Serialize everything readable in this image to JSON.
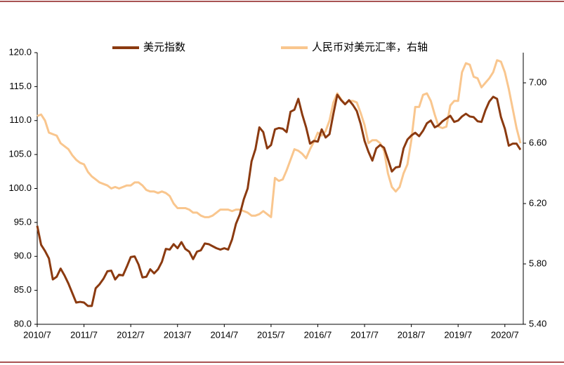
{
  "chart_data": {
    "type": "line",
    "categories": [
      "2010/7",
      null,
      null,
      null,
      null,
      null,
      null,
      null,
      null,
      null,
      null,
      null,
      "2011/7",
      null,
      null,
      null,
      null,
      null,
      null,
      null,
      null,
      null,
      null,
      null,
      "2012/7",
      null,
      null,
      null,
      null,
      null,
      null,
      null,
      null,
      null,
      null,
      null,
      "2013/7",
      null,
      null,
      null,
      null,
      null,
      null,
      null,
      null,
      null,
      null,
      null,
      "2014/7",
      null,
      null,
      null,
      null,
      null,
      null,
      null,
      null,
      null,
      null,
      null,
      "2015/7",
      null,
      null,
      null,
      null,
      null,
      null,
      null,
      null,
      null,
      null,
      null,
      "2016/7",
      null,
      null,
      null,
      null,
      null,
      null,
      null,
      null,
      null,
      null,
      null,
      "2017/7",
      null,
      null,
      null,
      null,
      null,
      null,
      null,
      null,
      null,
      null,
      null,
      "2018/7",
      null,
      null,
      null,
      null,
      null,
      null,
      null,
      null,
      null,
      null,
      null,
      "2019/7",
      null,
      null,
      null,
      null,
      null,
      null,
      null,
      null,
      null,
      null,
      null,
      "2020/7",
      null,
      null,
      null,
      null
    ],
    "series": [
      {
        "name": "美元指数",
        "color": "#8b3a10",
        "values": [
          94.5,
          91.7,
          90.8,
          89.7,
          86.6,
          87.0,
          88.2,
          87.2,
          86.0,
          84.6,
          83.2,
          83.3,
          83.2,
          82.7,
          82.7,
          85.3,
          85.9,
          86.7,
          87.8,
          87.9,
          86.6,
          87.3,
          87.2,
          88.5,
          89.9,
          90.0,
          88.8,
          86.9,
          87.0,
          88.1,
          87.5,
          88.1,
          89.2,
          91.1,
          91.0,
          91.8,
          91.2,
          92.1,
          91.1,
          90.7,
          89.6,
          90.7,
          90.9,
          91.9,
          91.8,
          91.5,
          91.2,
          91.0,
          91.2,
          91.0,
          92.5,
          94.8,
          96.2,
          98.4,
          100.0,
          104.0,
          105.8,
          109.0,
          108.3,
          105.9,
          106.4,
          108.7,
          108.9,
          108.8,
          108.3,
          111.3,
          111.6,
          113.2,
          110.9,
          109.0,
          106.6,
          107.0,
          106.9,
          108.7,
          107.5,
          108.0,
          111.0,
          113.8,
          113.0,
          112.4,
          113.0,
          112.3,
          111.4,
          109.5,
          107.0,
          105.4,
          104.1,
          105.9,
          106.4,
          106.0,
          104.3,
          102.5,
          103.1,
          103.2,
          105.9,
          107.2,
          107.8,
          108.2,
          107.7,
          108.5,
          109.6,
          110.0,
          109.0,
          109.3,
          109.9,
          110.3,
          110.7,
          109.8,
          110.0,
          110.6,
          111.0,
          110.6,
          110.5,
          109.9,
          109.8,
          111.5,
          112.8,
          113.5,
          113.2,
          110.5,
          108.8,
          106.3,
          106.6,
          106.6,
          105.7
        ]
      },
      {
        "name": "人民币对美元汇率，右轴",
        "color": "#f9c68e",
        "axis": "y2",
        "values": [
          6.78,
          6.79,
          6.75,
          6.67,
          6.66,
          6.65,
          6.6,
          6.58,
          6.56,
          6.52,
          6.49,
          6.47,
          6.46,
          6.41,
          6.38,
          6.36,
          6.34,
          6.33,
          6.32,
          6.3,
          6.31,
          6.3,
          6.31,
          6.32,
          6.32,
          6.34,
          6.34,
          6.32,
          6.29,
          6.28,
          6.28,
          6.27,
          6.28,
          6.27,
          6.25,
          6.2,
          6.17,
          6.17,
          6.17,
          6.16,
          6.14,
          6.14,
          6.12,
          6.11,
          6.11,
          6.12,
          6.14,
          6.16,
          6.16,
          6.16,
          6.15,
          6.16,
          6.16,
          6.15,
          6.14,
          6.12,
          6.12,
          6.13,
          6.15,
          6.13,
          6.11,
          6.37,
          6.35,
          6.36,
          6.42,
          6.49,
          6.56,
          6.55,
          6.53,
          6.5,
          6.56,
          6.61,
          6.67,
          6.65,
          6.68,
          6.75,
          6.87,
          6.93,
          6.89,
          6.86,
          6.88,
          6.88,
          6.87,
          6.8,
          6.72,
          6.6,
          6.62,
          6.62,
          6.6,
          6.55,
          6.4,
          6.31,
          6.28,
          6.31,
          6.4,
          6.46,
          6.62,
          6.84,
          6.84,
          6.92,
          6.93,
          6.88,
          6.79,
          6.71,
          6.7,
          6.71,
          6.85,
          6.88,
          6.88,
          7.07,
          7.13,
          7.12,
          7.04,
          7.03,
          6.97,
          7.0,
          7.03,
          7.07,
          7.15,
          7.14,
          7.07,
          6.96,
          6.83,
          6.7,
          6.6
        ]
      }
    ],
    "ylim": [
      80,
      120
    ],
    "yticks": [
      {
        "value": 80,
        "label": "80.0"
      },
      {
        "value": 85,
        "label": "85.0"
      },
      {
        "value": 90,
        "label": "90.0"
      },
      {
        "value": 95,
        "label": "95.0"
      },
      {
        "value": 100,
        "label": "100.0"
      },
      {
        "value": 105,
        "label": "105.0"
      },
      {
        "value": 110,
        "label": "110.0"
      },
      {
        "value": 115,
        "label": "115.0"
      },
      {
        "value": 120,
        "label": "120.0"
      }
    ],
    "y2lim": [
      5.4,
      7.2
    ],
    "y2ticks": [
      {
        "value": 5.4,
        "label": "5.40"
      },
      {
        "value": 5.8,
        "label": "5.80"
      },
      {
        "value": 6.2,
        "label": "6.20"
      },
      {
        "value": 6.6,
        "label": "6.60"
      },
      {
        "value": 7.0,
        "label": "7.00"
      }
    ],
    "grid": false
  }
}
